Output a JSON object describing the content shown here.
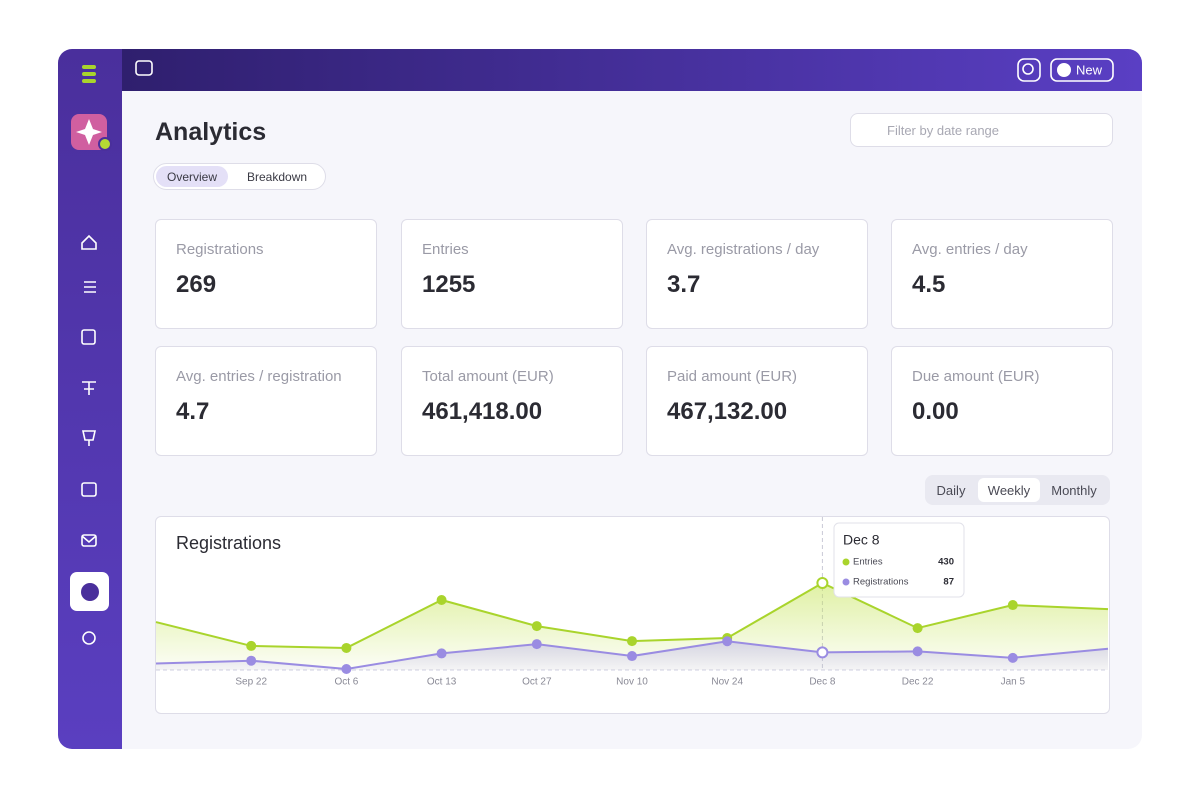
{
  "header": {
    "new_button": "New"
  },
  "page": {
    "title": "Analytics",
    "filter_placeholder": "Filter by date range",
    "tabs": [
      "Overview",
      "Breakdown"
    ]
  },
  "stats": [
    {
      "label": "Registrations",
      "value": "269"
    },
    {
      "label": "Entries",
      "value": "1255"
    },
    {
      "label": "Avg. registrations / day",
      "value": "3.7"
    },
    {
      "label": "Avg. entries / day",
      "value": "4.5"
    },
    {
      "label": "Avg. entries / registration",
      "value": "4.7"
    },
    {
      "label": "Total amount (EUR)",
      "value": "461,418.00"
    },
    {
      "label": "Paid amount (EUR)",
      "value": "467,132.00"
    },
    {
      "label": "Due amount (EUR)",
      "value": "0.00"
    }
  ],
  "period_toggle": [
    "Daily",
    "Weekly",
    "Monthly"
  ],
  "chart_data": {
    "type": "area",
    "title": "Registrations",
    "categories": [
      null,
      "Sep 22",
      "Oct 6",
      "Oct 13",
      "Oct 27",
      "Nov 10",
      "Nov 24",
      "Dec 8",
      "Dec 22",
      "Jan 5",
      null
    ],
    "series": [
      {
        "name": "Entries",
        "color": "#a9d42c",
        "values": [
          237,
          119,
          109,
          346,
          217,
          143,
          158,
          430,
          207,
          321,
          301
        ]
      },
      {
        "name": "Registrations",
        "color": "#9a8ce2",
        "values": [
          32,
          46,
          5,
          82,
          128,
          69,
          142,
          87,
          92,
          60,
          105
        ]
      }
    ]
  }
}
